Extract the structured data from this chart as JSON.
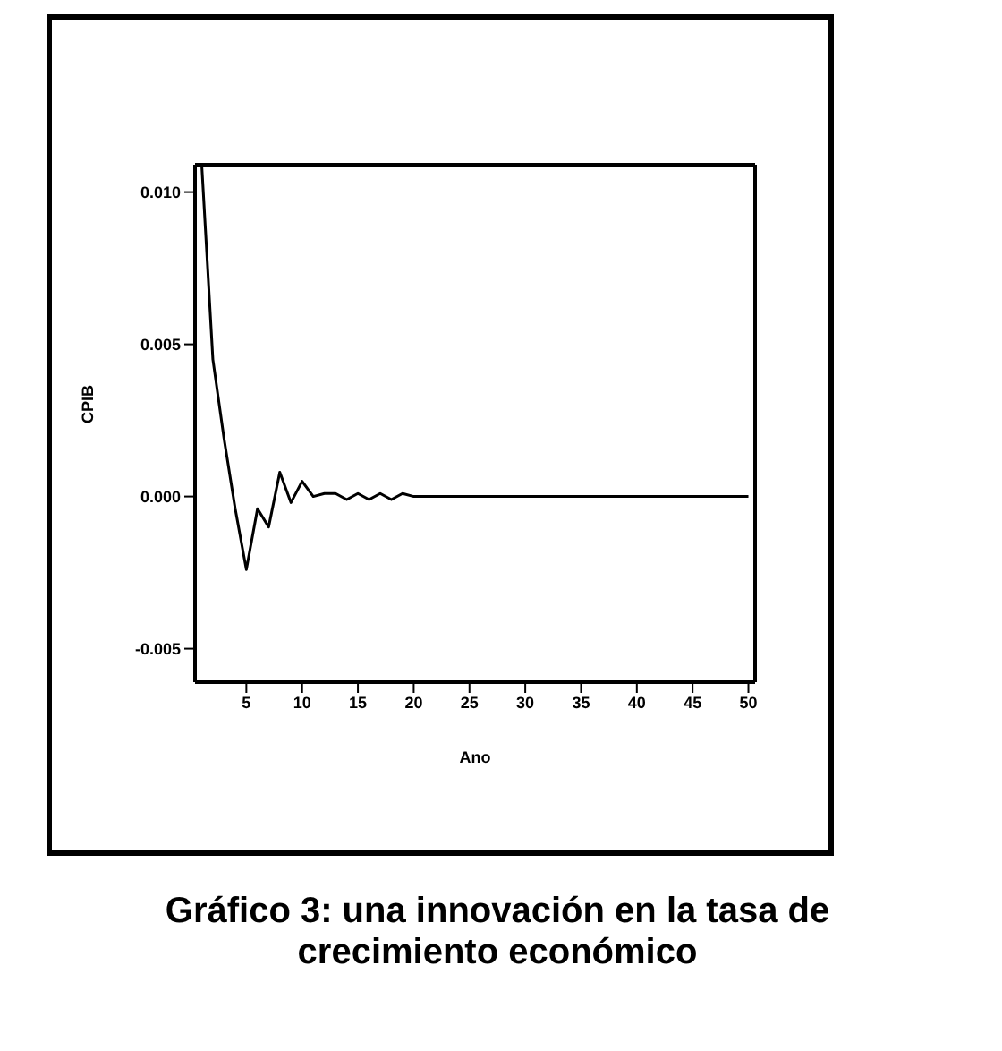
{
  "chart_data": {
    "type": "line",
    "title": "Gráfico 3: una innovación en la tasa de crecimiento económico",
    "xlabel": "Ano",
    "ylabel": "CPIB",
    "x": [
      1,
      2,
      3,
      4,
      5,
      6,
      7,
      8,
      9,
      10,
      11,
      12,
      13,
      14,
      15,
      16,
      17,
      18,
      19,
      20,
      21,
      22,
      23,
      24,
      25,
      26,
      27,
      28,
      29,
      30,
      31,
      32,
      33,
      34,
      35,
      36,
      37,
      38,
      39,
      40,
      41,
      42,
      43,
      44,
      45,
      46,
      47,
      48,
      49,
      50
    ],
    "series": [
      {
        "color": "#000000",
        "values": [
          0.0109,
          0.0045,
          0.0019,
          -0.0004,
          -0.0024,
          -0.0004,
          -0.001,
          0.0008,
          -0.0002,
          0.0005,
          0.0,
          0.0001,
          0.0001,
          -0.0001,
          0.0001,
          -0.0001,
          0.0001,
          -0.0001,
          0.0001,
          0.0,
          0.0,
          0.0,
          0.0,
          0.0,
          0.0,
          0.0,
          0.0,
          0.0,
          0.0,
          0.0,
          0.0,
          0.0,
          0.0,
          0.0,
          0.0,
          0.0,
          0.0,
          0.0,
          0.0,
          0.0,
          0.0,
          0.0,
          0.0,
          0.0,
          0.0,
          0.0,
          0.0,
          0.0,
          0.0,
          0.0
        ]
      }
    ],
    "xlim": [
      0.4,
      50.6
    ],
    "xticks": [
      5,
      10,
      15,
      20,
      25,
      30,
      35,
      40,
      45,
      50
    ],
    "ylim": [
      -0.0061,
      0.0109
    ],
    "yticks": [
      {
        "value": -0.005,
        "label": "-0.005"
      },
      {
        "value": 0,
        "label": "0.000"
      },
      {
        "value": 0.005,
        "label": "0.005"
      },
      {
        "value": 0.01,
        "label": "0.010"
      }
    ],
    "grid": false,
    "legend": false,
    "marker": "none",
    "line_style": "solid"
  }
}
